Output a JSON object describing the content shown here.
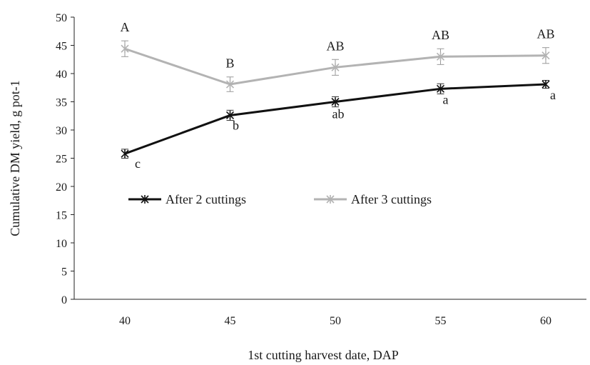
{
  "chart_data": {
    "type": "line",
    "title": "",
    "xlabel": "1st cutting harvest date, DAP",
    "ylabel": "Cumulative DM yield, g pot-1",
    "x": [
      40,
      45,
      50,
      55,
      60
    ],
    "x_tick_labels": [
      "40",
      "45",
      "50",
      "55",
      "60"
    ],
    "ylim": [
      0,
      50
    ],
    "y_ticks": [
      0,
      5,
      10,
      15,
      20,
      25,
      30,
      35,
      40,
      45,
      50
    ],
    "y_tick_labels": [
      "0",
      "5",
      "10",
      "15",
      "20",
      "25",
      "30",
      "35",
      "40",
      "45",
      "50"
    ],
    "grid": false,
    "legend_position": "middle-left",
    "series": [
      {
        "name": "After 2 cuttings",
        "color": "#111111",
        "marker": "star",
        "values": [
          25.8,
          32.6,
          35.0,
          37.3,
          38.1
        ],
        "error": [
          0.8,
          0.9,
          0.9,
          0.9,
          0.7
        ],
        "point_labels": [
          "c",
          "b",
          "ab",
          "a",
          "a"
        ]
      },
      {
        "name": "After 3 cuttings",
        "color": "#b3b3b3",
        "marker": "star",
        "values": [
          44.4,
          38.1,
          41.1,
          43.0,
          43.2
        ],
        "error": [
          1.4,
          1.3,
          1.4,
          1.4,
          1.4
        ],
        "point_labels": [
          "A",
          "B",
          "AB",
          "AB",
          "AB"
        ]
      }
    ]
  }
}
